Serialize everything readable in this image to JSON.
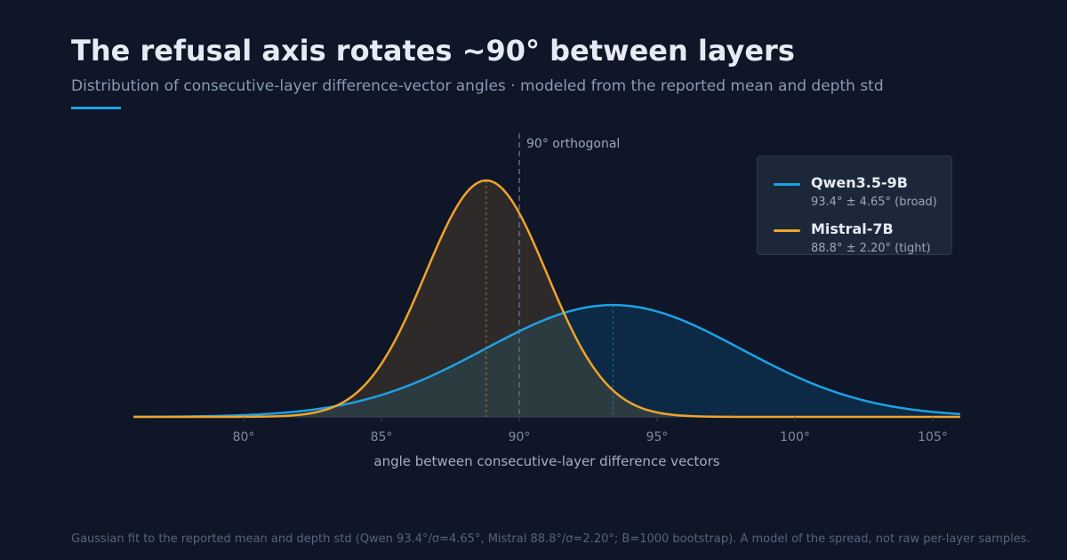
{
  "header": {
    "title": "The refusal axis rotates ~90° between layers",
    "subtitle": "Distribution of consecutive-layer difference-vector angles · modeled from the reported mean and depth std"
  },
  "chart_data": {
    "type": "area",
    "xlabel": "angle between consecutive-layer difference vectors",
    "xlim": [
      76,
      106
    ],
    "x_ticks": [
      80,
      85,
      90,
      95,
      100,
      105
    ],
    "x_tick_labels": [
      "80°",
      "85°",
      "90°",
      "95°",
      "100°",
      "105°"
    ],
    "reference_line": {
      "x": 90,
      "label": "90° orthogonal"
    },
    "legend_position": "top-right",
    "grid": false,
    "series": [
      {
        "name": "Qwen3.5-9B",
        "description": "93.4° ± 4.65° (broad)",
        "mean": 93.4,
        "std": 4.65,
        "color": "#1da1e6",
        "fill": "#0c2a45"
      },
      {
        "name": "Mistral-7B",
        "description": "88.8° ± 2.20° (tight)",
        "mean": 88.8,
        "std": 2.2,
        "color": "#f0a42a",
        "fill": "#2e2a2a"
      }
    ],
    "overlap_fill": "#2c3b40"
  },
  "footnote": "Gaussian fit to the reported mean and depth std (Qwen 93.4°/σ=4.65°, Mistral 88.8°/σ=2.20°; B=1000 bootstrap). A model of the spread, not raw per-layer samples."
}
